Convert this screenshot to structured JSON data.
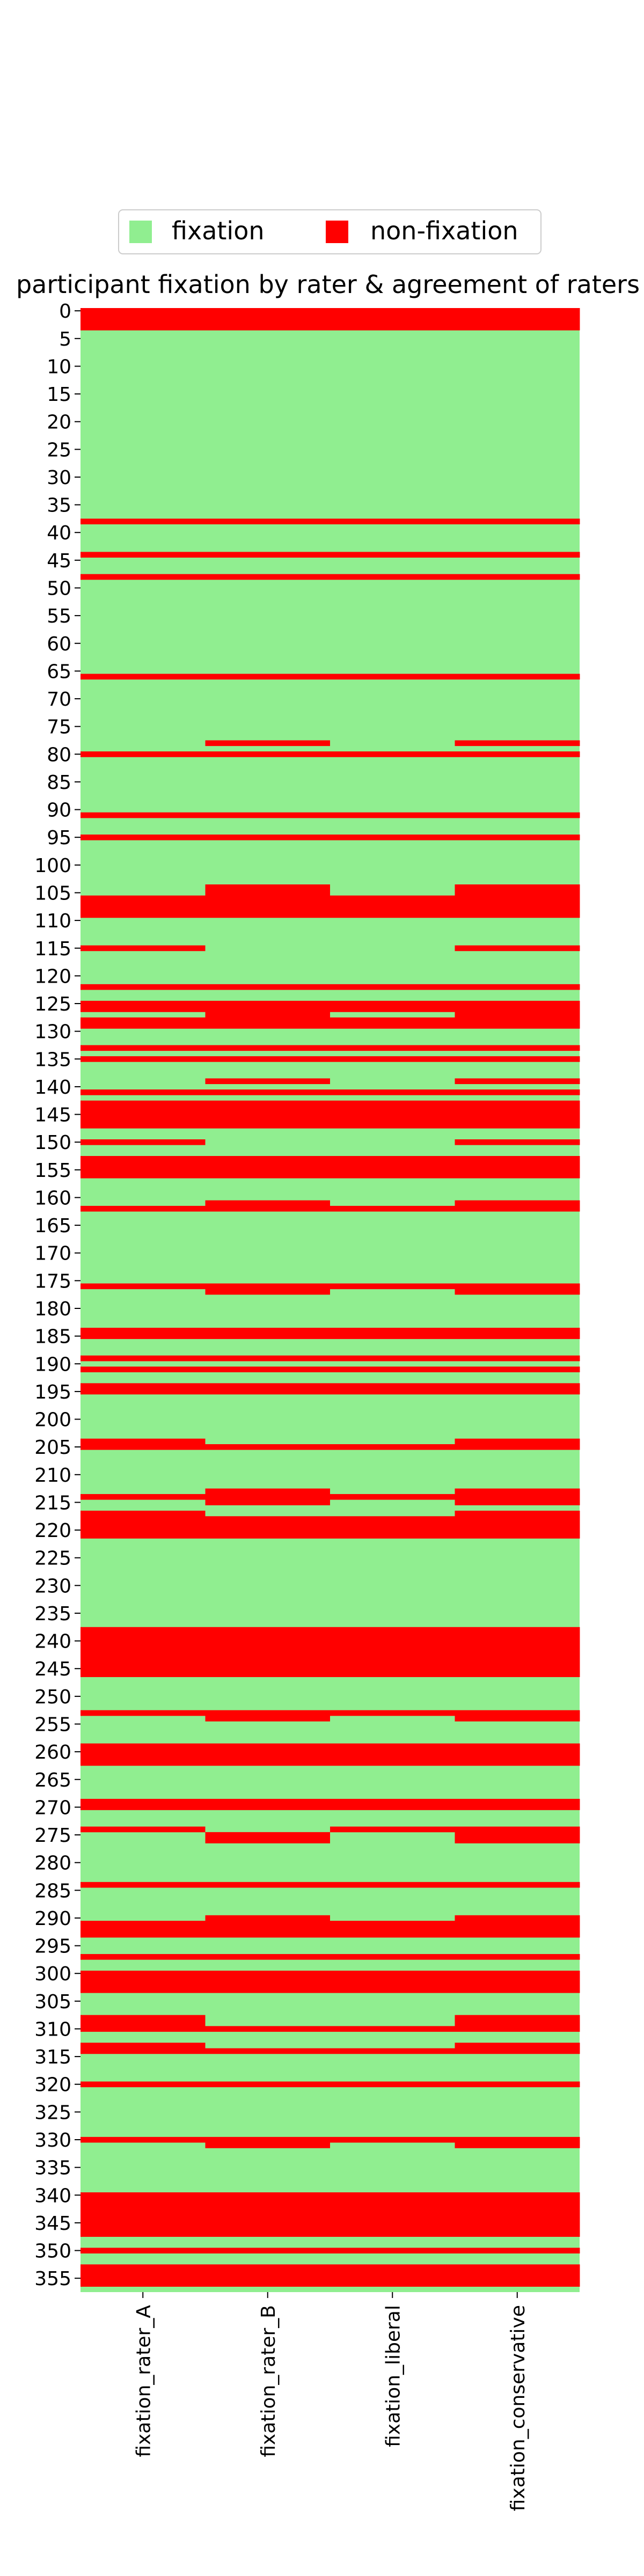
{
  "chart_data": {
    "type": "heatmap",
    "title": "participant fixation by rater & agreement of raters",
    "legend": {
      "placement": "top-center",
      "entries": [
        {
          "label": "fixation",
          "color": "#90ee90"
        },
        {
          "label": "non-fixation",
          "color": "#ff0000"
        }
      ]
    },
    "columns": [
      "fixation_rater_A",
      "fixation_rater_B",
      "fixation_liberal",
      "fixation_conservative"
    ],
    "row_range": [
      0,
      357
    ],
    "y_ticks": [
      0,
      5,
      10,
      15,
      20,
      25,
      30,
      35,
      40,
      45,
      50,
      55,
      60,
      65,
      70,
      75,
      80,
      85,
      90,
      95,
      100,
      105,
      110,
      115,
      120,
      125,
      130,
      135,
      140,
      145,
      150,
      155,
      160,
      165,
      170,
      175,
      180,
      185,
      190,
      195,
      200,
      205,
      210,
      215,
      220,
      225,
      230,
      235,
      240,
      245,
      250,
      255,
      260,
      265,
      270,
      275,
      280,
      285,
      290,
      295,
      300,
      305,
      310,
      315,
      320,
      325,
      330,
      335,
      340,
      345,
      350,
      355
    ],
    "non_fixation_ranges": {
      "fixation_rater_A": [
        [
          0,
          3
        ],
        [
          38,
          38
        ],
        [
          44,
          44
        ],
        [
          48,
          48
        ],
        [
          66,
          66
        ],
        [
          80,
          80
        ],
        [
          91,
          91
        ],
        [
          95,
          95
        ],
        [
          106,
          109
        ],
        [
          115,
          115
        ],
        [
          122,
          122
        ],
        [
          125,
          126
        ],
        [
          128,
          129
        ],
        [
          133,
          133
        ],
        [
          135,
          135
        ],
        [
          141,
          141
        ],
        [
          143,
          147
        ],
        [
          150,
          150
        ],
        [
          153,
          156
        ],
        [
          162,
          162
        ],
        [
          176,
          176
        ],
        [
          184,
          185
        ],
        [
          189,
          189
        ],
        [
          191,
          191
        ],
        [
          194,
          195
        ],
        [
          204,
          205
        ],
        [
          214,
          214
        ],
        [
          217,
          221
        ],
        [
          238,
          246
        ],
        [
          253,
          253
        ],
        [
          259,
          262
        ],
        [
          269,
          270
        ],
        [
          274,
          274
        ],
        [
          284,
          284
        ],
        [
          291,
          293
        ],
        [
          297,
          297
        ],
        [
          300,
          303
        ],
        [
          308,
          310
        ],
        [
          313,
          314
        ],
        [
          320,
          320
        ],
        [
          330,
          330
        ],
        [
          340,
          347
        ],
        [
          350,
          350
        ],
        [
          353,
          356
        ]
      ],
      "fixation_rater_B": [
        [
          0,
          3
        ],
        [
          38,
          38
        ],
        [
          44,
          44
        ],
        [
          48,
          48
        ],
        [
          66,
          66
        ],
        [
          78,
          78
        ],
        [
          80,
          80
        ],
        [
          91,
          91
        ],
        [
          95,
          95
        ],
        [
          104,
          109
        ],
        [
          122,
          122
        ],
        [
          125,
          129
        ],
        [
          133,
          133
        ],
        [
          135,
          135
        ],
        [
          139,
          139
        ],
        [
          141,
          141
        ],
        [
          143,
          147
        ],
        [
          153,
          156
        ],
        [
          161,
          162
        ],
        [
          176,
          177
        ],
        [
          184,
          185
        ],
        [
          189,
          189
        ],
        [
          191,
          191
        ],
        [
          194,
          195
        ],
        [
          205,
          205
        ],
        [
          213,
          215
        ],
        [
          218,
          221
        ],
        [
          238,
          246
        ],
        [
          253,
          254
        ],
        [
          259,
          262
        ],
        [
          269,
          270
        ],
        [
          275,
          276
        ],
        [
          284,
          284
        ],
        [
          290,
          293
        ],
        [
          297,
          297
        ],
        [
          300,
          303
        ],
        [
          310,
          310
        ],
        [
          314,
          314
        ],
        [
          320,
          320
        ],
        [
          330,
          331
        ],
        [
          340,
          347
        ],
        [
          350,
          350
        ],
        [
          353,
          356
        ]
      ],
      "fixation_liberal": [
        [
          0,
          3
        ],
        [
          38,
          38
        ],
        [
          44,
          44
        ],
        [
          48,
          48
        ],
        [
          66,
          66
        ],
        [
          80,
          80
        ],
        [
          91,
          91
        ],
        [
          95,
          95
        ],
        [
          106,
          109
        ],
        [
          122,
          122
        ],
        [
          125,
          126
        ],
        [
          128,
          129
        ],
        [
          133,
          133
        ],
        [
          135,
          135
        ],
        [
          141,
          141
        ],
        [
          143,
          147
        ],
        [
          153,
          156
        ],
        [
          162,
          162
        ],
        [
          176,
          176
        ],
        [
          184,
          185
        ],
        [
          189,
          189
        ],
        [
          191,
          191
        ],
        [
          194,
          195
        ],
        [
          205,
          205
        ],
        [
          214,
          214
        ],
        [
          218,
          221
        ],
        [
          238,
          246
        ],
        [
          253,
          253
        ],
        [
          259,
          262
        ],
        [
          269,
          270
        ],
        [
          274,
          274
        ],
        [
          284,
          284
        ],
        [
          291,
          293
        ],
        [
          297,
          297
        ],
        [
          300,
          303
        ],
        [
          310,
          310
        ],
        [
          314,
          314
        ],
        [
          320,
          320
        ],
        [
          330,
          330
        ],
        [
          340,
          347
        ],
        [
          350,
          350
        ],
        [
          353,
          356
        ]
      ],
      "fixation_conservative": [
        [
          0,
          3
        ],
        [
          38,
          38
        ],
        [
          44,
          44
        ],
        [
          48,
          48
        ],
        [
          66,
          66
        ],
        [
          78,
          78
        ],
        [
          80,
          80
        ],
        [
          91,
          91
        ],
        [
          95,
          95
        ],
        [
          104,
          109
        ],
        [
          115,
          115
        ],
        [
          122,
          122
        ],
        [
          125,
          129
        ],
        [
          133,
          133
        ],
        [
          135,
          135
        ],
        [
          139,
          139
        ],
        [
          141,
          141
        ],
        [
          143,
          147
        ],
        [
          150,
          150
        ],
        [
          153,
          156
        ],
        [
          161,
          162
        ],
        [
          176,
          177
        ],
        [
          184,
          185
        ],
        [
          189,
          189
        ],
        [
          191,
          191
        ],
        [
          194,
          195
        ],
        [
          204,
          205
        ],
        [
          213,
          215
        ],
        [
          217,
          221
        ],
        [
          238,
          246
        ],
        [
          253,
          254
        ],
        [
          259,
          262
        ],
        [
          269,
          270
        ],
        [
          274,
          276
        ],
        [
          284,
          284
        ],
        [
          290,
          293
        ],
        [
          297,
          297
        ],
        [
          300,
          303
        ],
        [
          308,
          310
        ],
        [
          313,
          314
        ],
        [
          320,
          320
        ],
        [
          330,
          331
        ],
        [
          340,
          347
        ],
        [
          350,
          350
        ],
        [
          353,
          356
        ]
      ]
    }
  }
}
